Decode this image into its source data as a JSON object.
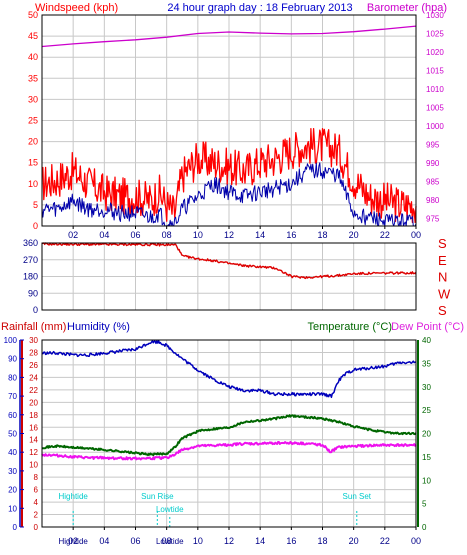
{
  "colors": {
    "wind": "#ff0000",
    "gust": "#0000aa",
    "baro": "#cc00cc",
    "title": "#0000cc",
    "dir": "#dd0000",
    "hum": "#0000bb",
    "temp": "#006600",
    "dew": "#ee11ee",
    "tide": "#00cccc",
    "axis_time": "#000088",
    "rain_axis": "#cc0000",
    "hum_axis": "#0000bb",
    "temp_axis": "#006600",
    "grid": "#c8c8c8"
  },
  "header": {
    "left": "Windspeed (kph)",
    "center": "24 hour graph day : 18 February 2013",
    "right": "Barometer (hpa)"
  },
  "time_ticks": [
    "02",
    "04",
    "06",
    "08",
    "10",
    "12",
    "14",
    "16",
    "18",
    "20",
    "22",
    "00"
  ],
  "compass": [
    "S",
    "E",
    "N",
    "W",
    "S"
  ],
  "labels": {
    "rainfall": "Rainfall (mm)",
    "humidity": "Humidity (%)",
    "temperature": "Temperature (°C)",
    "dewpoint": "Dew Point (°C)"
  },
  "events": [
    {
      "label": "Hightide",
      "x": 2.0,
      "tier": 0
    },
    {
      "label": "Sun Rise",
      "x": 7.4,
      "tier": 0
    },
    {
      "label": "Lowtide",
      "x": 8.2,
      "tier": 1
    },
    {
      "label": "Sun Set",
      "x": 20.2,
      "tier": 0
    }
  ],
  "bottom_event_labels": [
    {
      "label": "Hightide",
      "x": 2.0
    },
    {
      "label": "Lowtide",
      "x": 8.2
    }
  ],
  "chart_data": [
    {
      "type": "line",
      "title": "24 hour graph day : 18 February 2013",
      "xlim": [
        0,
        24
      ],
      "y_left": {
        "label": "Windspeed (kph)",
        "ticks": [
          0,
          5,
          10,
          15,
          20,
          25,
          30,
          35,
          40,
          45,
          50
        ],
        "ylim": [
          0,
          50
        ]
      },
      "y_right": {
        "label": "Barometer (hpa)",
        "ticks": [
          975,
          980,
          985,
          990,
          995,
          1000,
          1005,
          1010,
          1015,
          1020,
          1025,
          1030
        ],
        "ylim": [
          973,
          1030
        ]
      },
      "series": [
        {
          "key": "wind",
          "x": [
            0,
            1,
            2,
            3,
            4,
            5,
            6,
            7,
            7.5,
            8,
            8.5,
            9,
            10,
            11,
            12,
            13,
            14,
            15,
            16,
            17,
            18,
            19,
            20,
            21,
            22,
            23,
            24
          ],
          "values": [
            10,
            11,
            13,
            10,
            8,
            7,
            7,
            6,
            8,
            5,
            3,
            12,
            16,
            15,
            14,
            13,
            15,
            16,
            18,
            19,
            19,
            18,
            11,
            7,
            6,
            5,
            5
          ]
        },
        {
          "key": "gust",
          "x": [
            0,
            1,
            2,
            3,
            4,
            5,
            6,
            7,
            7.5,
            8,
            8.5,
            9,
            10,
            11,
            12,
            13,
            14,
            15,
            16,
            17,
            18,
            19,
            20,
            21,
            22,
            23,
            24
          ],
          "values": [
            4,
            4,
            6,
            4,
            4,
            3,
            3,
            2,
            3,
            1,
            0.5,
            4,
            7,
            10,
            8,
            7,
            8,
            9,
            10,
            13,
            13,
            12,
            3,
            2,
            1,
            1,
            1
          ]
        },
        {
          "key": "baro",
          "x": [
            0,
            2,
            4,
            6,
            8,
            10,
            12,
            14,
            16,
            18,
            20,
            22,
            24
          ],
          "values": [
            1021.5,
            1022.2,
            1022.8,
            1023.3,
            1024.0,
            1025.0,
            1025.4,
            1025.1,
            1024.9,
            1025.0,
            1025.5,
            1026.2,
            1027.0
          ]
        }
      ]
    },
    {
      "type": "line",
      "title": "",
      "xlim": [
        0,
        24
      ],
      "y_left": {
        "label": "",
        "ticks": [
          0,
          90,
          180,
          270,
          360
        ],
        "ylim": [
          0,
          360
        ]
      },
      "series": [
        {
          "key": "dir",
          "x": [
            0,
            2,
            4,
            6,
            8,
            8.6,
            9,
            10,
            11,
            12,
            13,
            14,
            15,
            16,
            17,
            18,
            19,
            20,
            22,
            24
          ],
          "values": [
            355,
            353,
            352,
            352,
            350,
            350,
            290,
            275,
            265,
            250,
            238,
            232,
            225,
            180,
            175,
            180,
            185,
            195,
            198,
            200
          ]
        }
      ]
    },
    {
      "type": "line",
      "title": "",
      "xlim": [
        0,
        24
      ],
      "y_left": {
        "label": "Rainfall (mm)",
        "ticks": [
          0,
          2,
          4,
          6,
          8,
          10,
          12,
          14,
          16,
          18,
          20,
          22,
          24,
          26,
          28,
          30
        ],
        "ylim": [
          0,
          30
        ]
      },
      "y_humidity": {
        "label": "Humidity (%)",
        "ticks": [
          0,
          10,
          20,
          30,
          40,
          50,
          60,
          70,
          80,
          90,
          100
        ],
        "ylim": [
          0,
          100
        ]
      },
      "y_right": {
        "label": "Temperature (°C)",
        "ticks": [
          0,
          5,
          10,
          15,
          20,
          25,
          30,
          35,
          40
        ],
        "ylim": [
          0,
          40
        ]
      },
      "series": [
        {
          "key": "hum",
          "x": [
            0,
            1,
            2,
            3,
            4,
            5,
            6,
            6.5,
            7,
            7.5,
            8,
            9,
            10,
            11,
            12,
            13,
            14,
            15,
            16,
            17,
            18,
            18.6,
            19,
            19.5,
            20,
            21,
            22,
            23,
            24
          ],
          "values": [
            93,
            93,
            92,
            92,
            93,
            94,
            95,
            97,
            99,
            99,
            97,
            90,
            84,
            79,
            75,
            73,
            73,
            71,
            71,
            71,
            71,
            70,
            78,
            82,
            84,
            85,
            86,
            88,
            88
          ]
        },
        {
          "key": "temp",
          "x": [
            0,
            1,
            2,
            3,
            4,
            5,
            6,
            7,
            8,
            8.5,
            9,
            10,
            11,
            12,
            13,
            14,
            15,
            16,
            17,
            18,
            19,
            20,
            21,
            22,
            23,
            24
          ],
          "values": [
            17.0,
            17.3,
            17.0,
            16.8,
            16.5,
            16.2,
            15.8,
            15.5,
            15.7,
            17.0,
            19.0,
            20.5,
            21.0,
            21.3,
            22.5,
            22.8,
            23.2,
            23.8,
            23.5,
            23.2,
            22.5,
            21.5,
            20.8,
            20.3,
            20.0,
            20.0
          ]
        },
        {
          "key": "dew",
          "x": [
            0,
            1,
            2,
            3,
            4,
            5,
            6,
            7,
            8,
            8.5,
            9,
            10,
            11,
            12,
            13,
            14,
            15,
            16,
            17,
            18,
            18.5,
            19,
            20,
            21,
            22,
            23,
            24
          ],
          "values": [
            15.5,
            15.3,
            15.0,
            14.8,
            14.8,
            14.7,
            14.7,
            14.7,
            14.8,
            15.5,
            16.5,
            17.3,
            17.4,
            17.6,
            17.8,
            17.8,
            18.0,
            18.0,
            17.8,
            17.6,
            16.0,
            17.0,
            17.3,
            17.4,
            17.5,
            17.5,
            17.5
          ]
        }
      ]
    }
  ]
}
